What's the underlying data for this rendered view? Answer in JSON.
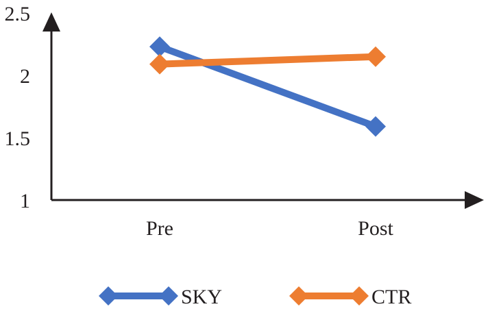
{
  "chart_data": {
    "type": "line",
    "categories": [
      "Pre",
      "Post"
    ],
    "series": [
      {
        "name": "SKY",
        "values": [
          2.23,
          1.59
        ],
        "color": "#4472c4"
      },
      {
        "name": "CTR",
        "values": [
          2.09,
          2.15
        ],
        "color": "#ed7d31"
      }
    ],
    "ylim": [
      1,
      2.5
    ],
    "yticks": [
      "1",
      "1.5",
      "2",
      "2.5"
    ],
    "marker": "diamond",
    "legend_position": "bottom",
    "grid": false,
    "axis_color": "#231f20"
  }
}
